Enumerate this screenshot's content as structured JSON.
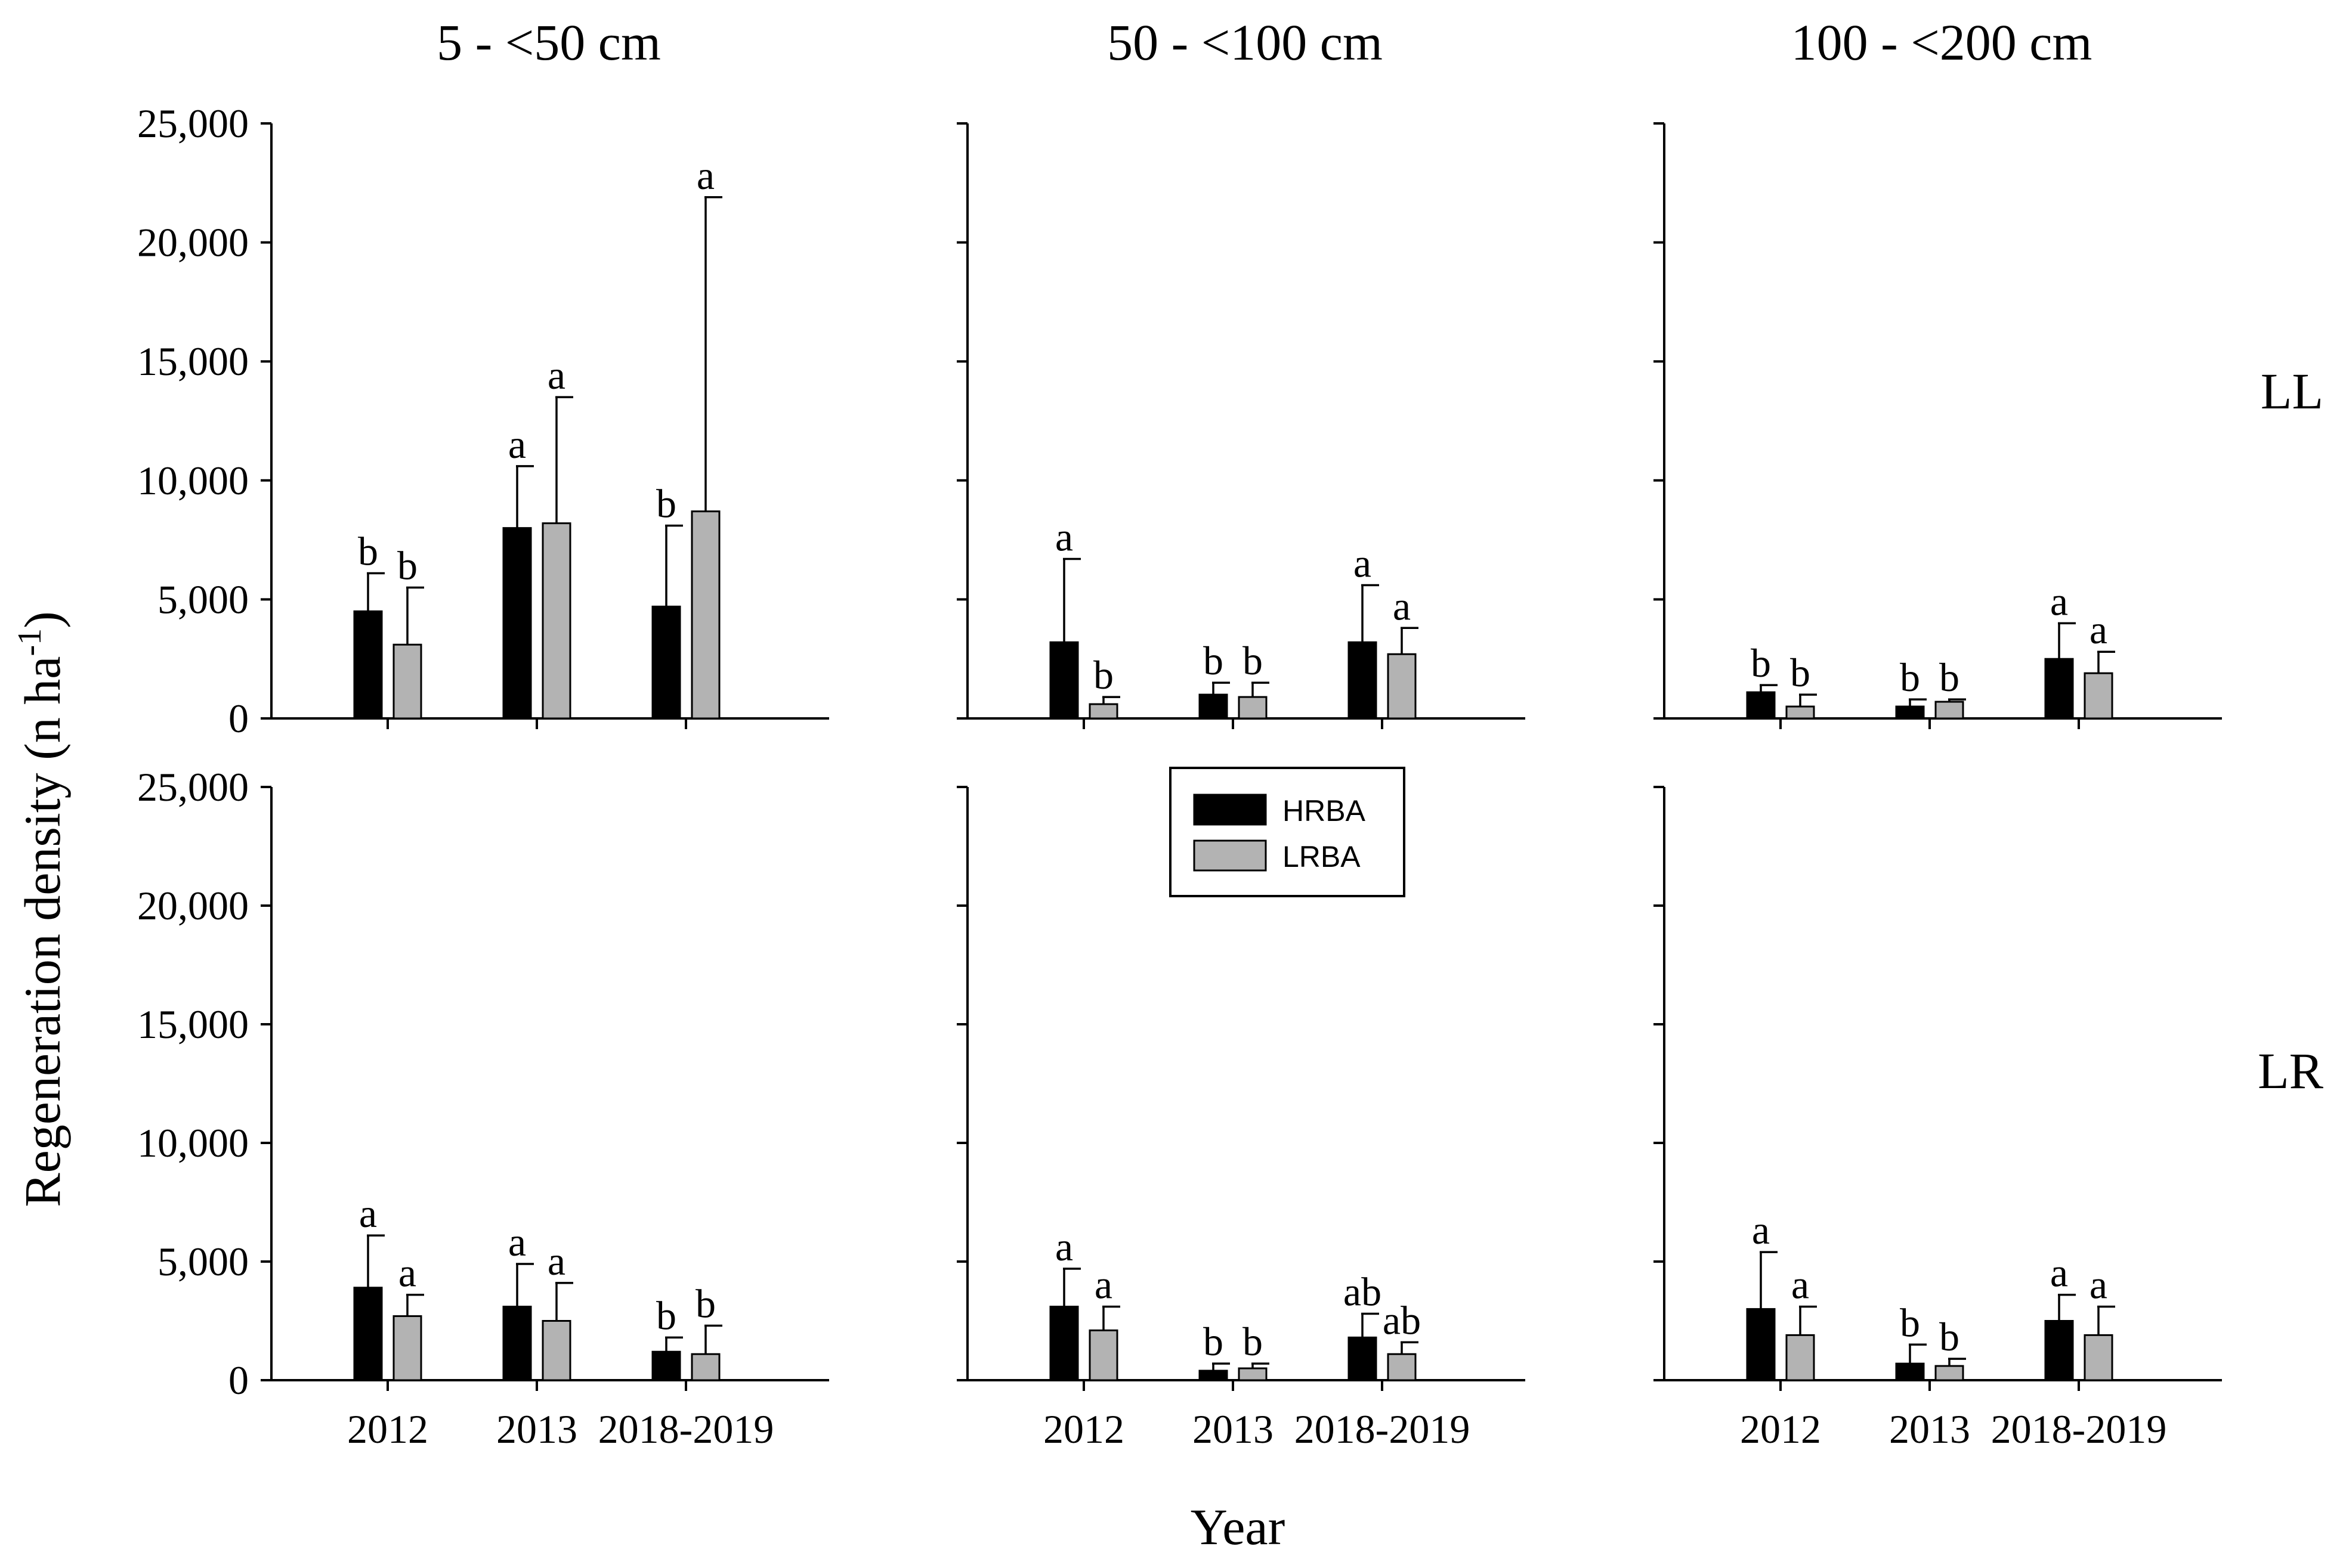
{
  "chart_data": {
    "type": "bar",
    "ylabel": "Regeneration density (n ha",
    "ylabel_sup": "-1",
    "ylabel_close": ")",
    "xlabel": "Year",
    "ylim": [
      0,
      25000
    ],
    "yticks": [
      0,
      5000,
      10000,
      15000,
      20000,
      25000
    ],
    "ytick_labels": [
      "0",
      "5,000",
      "10,000",
      "15,000",
      "20,000",
      "25,000"
    ],
    "categories": [
      "2012",
      "2013",
      "2018-2019"
    ],
    "columns": [
      "5 - <50 cm",
      "50 - <100 cm",
      "100 - <200 cm"
    ],
    "rows": [
      "LL",
      "LR"
    ],
    "legend": [
      {
        "name": "HRBA",
        "color": "#000000"
      },
      {
        "name": "LRBA",
        "color": "#b3b3b3"
      }
    ],
    "panels": [
      {
        "row": "LL",
        "column": "5 - <50 cm",
        "series": [
          {
            "name": "HRBA",
            "values": [
              4500,
              8000,
              4700
            ],
            "errors": [
              6100,
              10600,
              8100
            ],
            "letters": [
              "b",
              "a",
              "b"
            ]
          },
          {
            "name": "LRBA",
            "values": [
              3100,
              8200,
              8700
            ],
            "errors": [
              5500,
              13500,
              21900
            ],
            "letters": [
              "b",
              "a",
              "a"
            ]
          }
        ]
      },
      {
        "row": "LL",
        "column": "50 - <100 cm",
        "series": [
          {
            "name": "HRBA",
            "values": [
              3200,
              1000,
              3200
            ],
            "errors": [
              6700,
              1500,
              5600
            ],
            "letters": [
              "a",
              "b",
              "a"
            ]
          },
          {
            "name": "LRBA",
            "values": [
              600,
              900,
              2700
            ],
            "errors": [
              900,
              1500,
              3800
            ],
            "letters": [
              "b",
              "b",
              "a"
            ]
          }
        ]
      },
      {
        "row": "LL",
        "column": "100 - <200 cm",
        "series": [
          {
            "name": "HRBA",
            "values": [
              1100,
              500,
              2500
            ],
            "errors": [
              1400,
              800,
              4000
            ],
            "letters": [
              "b",
              "b",
              "a"
            ]
          },
          {
            "name": "LRBA",
            "values": [
              500,
              700,
              1900
            ],
            "errors": [
              1000,
              800,
              2800
            ],
            "letters": [
              "b",
              "b",
              "a"
            ]
          }
        ]
      },
      {
        "row": "LR",
        "column": "5 - <50 cm",
        "series": [
          {
            "name": "HRBA",
            "values": [
              3900,
              3100,
              1200
            ],
            "errors": [
              6100,
              4900,
              1800
            ],
            "letters": [
              "a",
              "a",
              "b"
            ]
          },
          {
            "name": "LRBA",
            "values": [
              2700,
              2500,
              1100
            ],
            "errors": [
              3600,
              4100,
              2300
            ],
            "letters": [
              "a",
              "a",
              "b"
            ]
          }
        ]
      },
      {
        "row": "LR",
        "column": "50 - <100 cm",
        "series": [
          {
            "name": "HRBA",
            "values": [
              3100,
              400,
              1800
            ],
            "errors": [
              4700,
              700,
              2800
            ],
            "letters": [
              "a",
              "b",
              "ab"
            ]
          },
          {
            "name": "LRBA",
            "values": [
              2100,
              500,
              1100
            ],
            "errors": [
              3100,
              700,
              1600
            ],
            "letters": [
              "a",
              "b",
              "ab"
            ]
          }
        ]
      },
      {
        "row": "LR",
        "column": "100 - <200 cm",
        "series": [
          {
            "name": "HRBA",
            "values": [
              3000,
              700,
              2500
            ],
            "errors": [
              5400,
              1500,
              3600
            ],
            "letters": [
              "a",
              "b",
              "a"
            ]
          },
          {
            "name": "LRBA",
            "values": [
              1900,
              600,
              1900
            ],
            "errors": [
              3100,
              900,
              3100
            ],
            "letters": [
              "a",
              "b",
              "a"
            ]
          }
        ]
      }
    ]
  }
}
